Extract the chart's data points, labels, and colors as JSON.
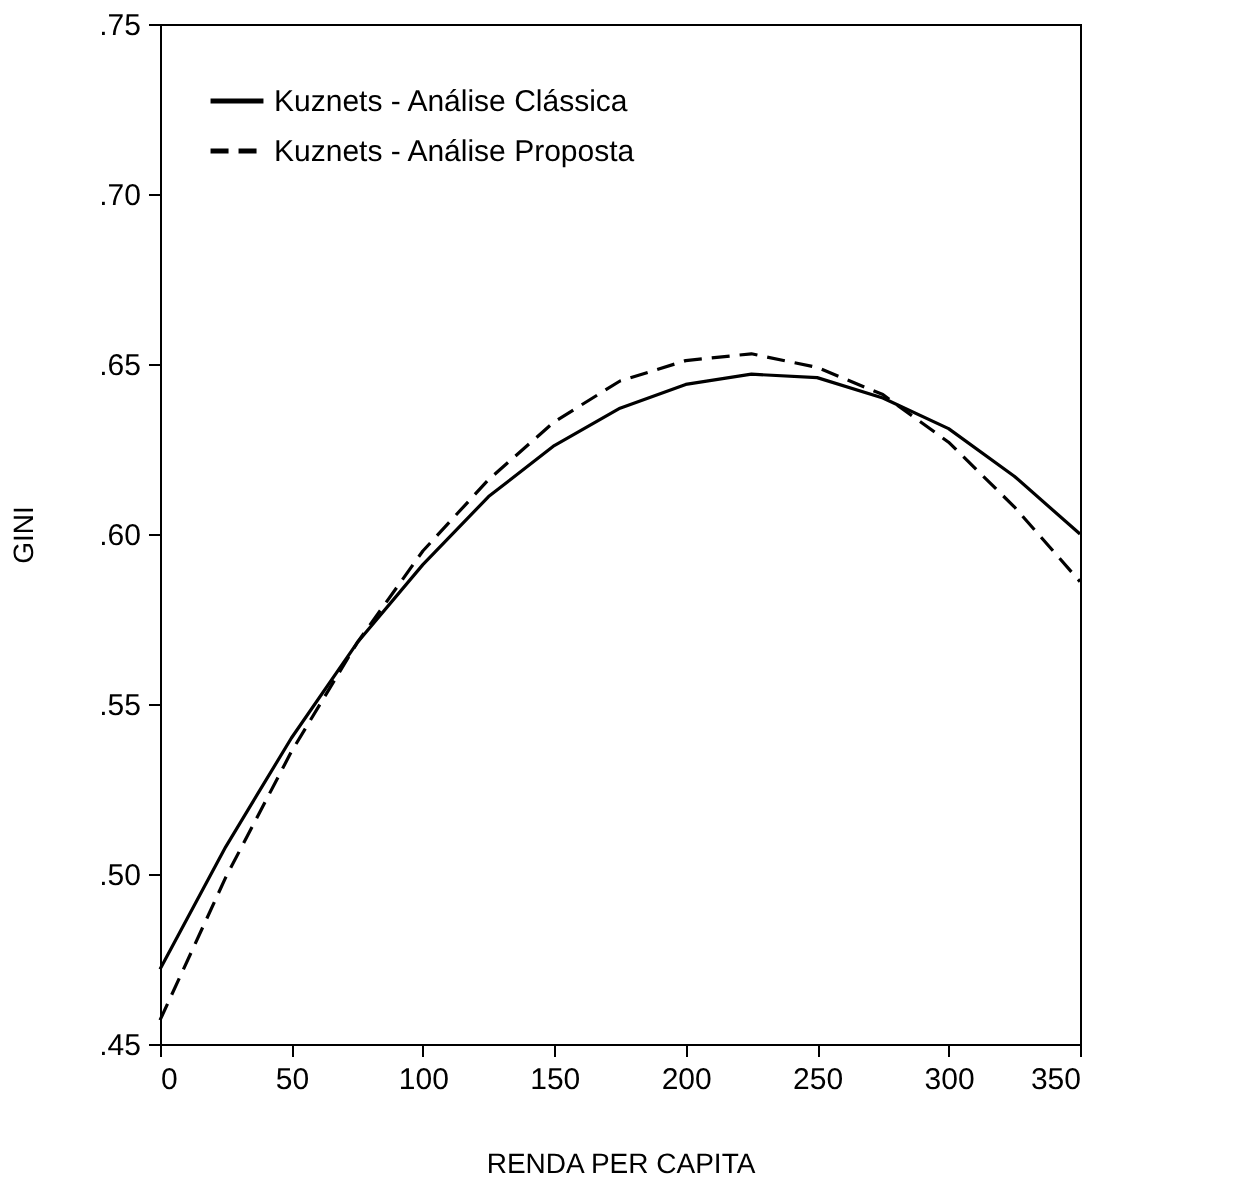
{
  "chart_data": {
    "type": "line",
    "xlabel": "RENDA PER CAPITA",
    "ylabel": "GINI",
    "x": [
      0,
      25,
      50,
      75,
      100,
      125,
      150,
      175,
      200,
      225,
      250,
      275,
      300,
      325,
      350
    ],
    "series": [
      {
        "name": "Kuznets - Análise Clássica",
        "color": "#000000",
        "line_style": "solid",
        "values": [
          0.472,
          0.508,
          0.54,
          0.568,
          0.591,
          0.611,
          0.626,
          0.637,
          0.644,
          0.647,
          0.646,
          0.64,
          0.631,
          0.617,
          0.6
        ]
      },
      {
        "name": "Kuznets - Análise Proposta",
        "color": "#000000",
        "line_style": "dashed",
        "values": [
          0.457,
          0.499,
          0.536,
          0.568,
          0.595,
          0.616,
          0.633,
          0.645,
          0.651,
          0.653,
          0.649,
          0.641,
          0.627,
          0.608,
          0.586
        ]
      }
    ],
    "xlim": [
      0,
      350
    ],
    "xticks": [
      0,
      50,
      100,
      150,
      200,
      250,
      300,
      350
    ],
    "ylim": [
      0.45,
      0.75
    ],
    "yticks": [
      {
        "value": 0.45,
        "label": ".45"
      },
      {
        "value": 0.5,
        "label": ".50"
      },
      {
        "value": 0.55,
        "label": ".55"
      },
      {
        "value": 0.6,
        "label": ".60"
      },
      {
        "value": 0.65,
        "label": ".65"
      },
      {
        "value": 0.7,
        "label": ".70"
      },
      {
        "value": 0.75,
        "label": ".75"
      }
    ],
    "grid": false,
    "legend": "top left",
    "marker": "none"
  }
}
